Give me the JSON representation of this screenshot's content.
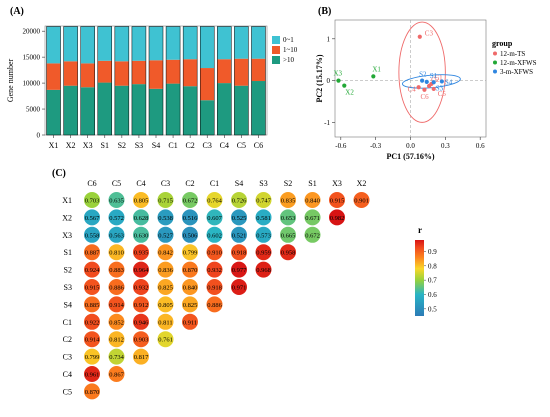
{
  "panels": {
    "a": "(A)",
    "b": "(B)",
    "c": "(C)"
  },
  "chart_data": [
    {
      "type": "bar",
      "stacked": true,
      "ylabel": "Gene number",
      "ylim": [
        0,
        20000
      ],
      "yticks": [
        "0",
        "5000",
        "10000",
        "15000",
        "20000"
      ],
      "yticks_values": [
        0,
        5000,
        10000,
        15000,
        20000
      ],
      "categories": [
        "X1",
        "X2",
        "X3",
        "S1",
        "S2",
        "S3",
        "S4",
        "C1",
        "C2",
        "C3",
        "C4",
        "C5",
        "C6"
      ],
      "total": 20900,
      "series": [
        {
          "name": ">10",
          "color": "#1e9a80",
          "values": [
            8700,
            9500,
            9200,
            10100,
            9500,
            9800,
            8900,
            9900,
            9400,
            6700,
            10000,
            9500,
            10400
          ]
        },
        {
          "name": "1~10",
          "color": "#f05a2a",
          "values": [
            5100,
            4700,
            4600,
            4200,
            4700,
            4500,
            5500,
            4600,
            5200,
            6200,
            4600,
            5200,
            4300
          ]
        },
        {
          "name": "0~1",
          "color": "#3fc2d2",
          "values": [
            7100,
            6700,
            7100,
            6600,
            6700,
            6600,
            6500,
            6400,
            6300,
            8000,
            6300,
            6200,
            6200
          ]
        }
      ],
      "legend_position": "right"
    },
    {
      "type": "scatter",
      "xlabel": "PC1 (57.16%)",
      "ylabel": "PC2 (15.17%)",
      "xlim": [
        -0.65,
        0.65
      ],
      "ylim": [
        -1.35,
        1.45
      ],
      "xticks": [
        "-0.6",
        "-0.3",
        "0.0",
        "0.3",
        "0.6"
      ],
      "xticks_values": [
        -0.6,
        -0.3,
        0.0,
        0.3,
        0.6
      ],
      "yticks": [
        "-1",
        "0",
        "1"
      ],
      "yticks_values": [
        -1,
        0,
        1
      ],
      "legend_title": "group",
      "series": [
        {
          "name": "12-m-TS",
          "color": "#ef6a6a",
          "points": [
            {
              "label": "C3",
              "x": 0.08,
              "y": 1.05
            },
            {
              "label": "C4",
              "x": 0.07,
              "y": -0.16
            },
            {
              "label": "C6",
              "x": 0.12,
              "y": -0.22
            },
            {
              "label": "C2",
              "x": 0.16,
              "y": -0.13
            },
            {
              "label": "C5",
              "x": 0.2,
              "y": -0.2
            },
            {
              "label": "C1",
              "x": 0.18,
              "y": -0.08
            }
          ]
        },
        {
          "name": "12-m-XFWS",
          "color": "#22a836",
          "points": [
            {
              "label": "X1",
              "x": -0.32,
              "y": 0.1
            },
            {
              "label": "X3",
              "x": -0.62,
              "y": 0.0
            },
            {
              "label": "X2",
              "x": -0.57,
              "y": -0.12
            }
          ]
        },
        {
          "name": "3-m-XFWS",
          "color": "#2f86e0",
          "points": [
            {
              "label": "S2",
              "x": 0.1,
              "y": 0.0
            },
            {
              "label": "S1",
              "x": 0.14,
              "y": -0.03
            },
            {
              "label": "S4",
              "x": 0.27,
              "y": -0.02
            },
            {
              "label": "S3",
              "x": 0.2,
              "y": -0.04
            }
          ]
        }
      ]
    },
    {
      "type": "heatmap",
      "colorbar_title": "r",
      "colorbar_ticks": [
        "0.9",
        "0.8",
        "0.7",
        "0.6",
        "0.5"
      ],
      "colorbar_values": [
        0.9,
        0.8,
        0.7,
        0.6,
        0.5
      ],
      "colorbar_range": [
        0.45,
        0.98
      ],
      "columns": [
        "C6",
        "C5",
        "C4",
        "C3",
        "C2",
        "C1",
        "S4",
        "S3",
        "S2",
        "S1",
        "X3",
        "X2"
      ],
      "rows": [
        "X1",
        "X2",
        "X3",
        "S1",
        "S2",
        "S3",
        "S4",
        "C1",
        "C2",
        "C3",
        "C4",
        "C5"
      ],
      "values": [
        [
          "0.703",
          "0.635",
          "0.805",
          "0.715",
          "0.672",
          "0.764",
          "0.726",
          "0.747",
          "0.835",
          "0.840",
          "0.915",
          "0.901"
        ],
        [
          "0.567",
          "0.572",
          "0.628",
          "0.538",
          "0.516",
          "0.607",
          "0.525",
          "0.581",
          "0.653",
          "0.671",
          "0.982"
        ],
        [
          "0.558",
          "0.563",
          "0.630",
          "0.527",
          "0.506",
          "0.602",
          "0.521",
          "0.573",
          "0.665",
          "0.672"
        ],
        [
          "0.887",
          "0.810",
          "0.935",
          "0.842",
          "0.799",
          "0.910",
          "0.918",
          "0.959",
          "0.958"
        ],
        [
          "0.924",
          "0.883",
          "0.964",
          "0.836",
          "0.870",
          "0.932",
          "0.977",
          "0.968"
        ],
        [
          "0.915",
          "0.886",
          "0.932",
          "0.825",
          "0.840",
          "0.918",
          "0.971"
        ],
        [
          "0.885",
          "0.914",
          "0.912",
          "0.805",
          "0.825",
          "0.886"
        ],
        [
          "0.922",
          "0.852",
          "0.946",
          "0.811",
          "0.911"
        ],
        [
          "0.914",
          "0.812",
          "0.903",
          "0.761"
        ],
        [
          "0.799",
          "0.734",
          "0.817"
        ],
        [
          "0.961",
          "0.867"
        ],
        [
          "0.870"
        ]
      ]
    }
  ]
}
